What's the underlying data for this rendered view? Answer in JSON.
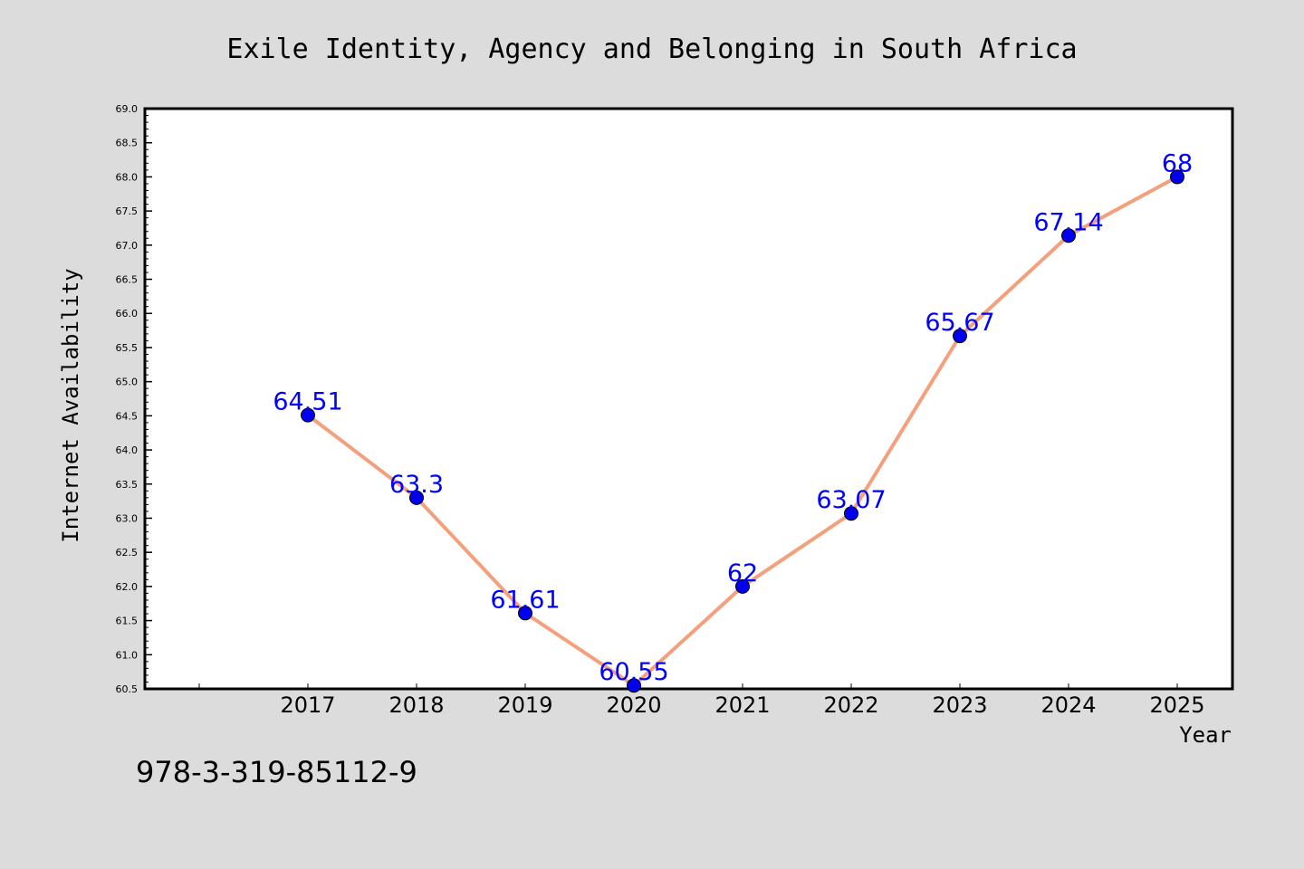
{
  "chart_data": {
    "type": "line",
    "title": "Exile Identity, Agency and Belonging in South Africa",
    "xlabel": "Year",
    "ylabel": "Internet Availability",
    "x": [
      "2017",
      "2018",
      "2019",
      "2020",
      "2021",
      "2022",
      "2023",
      "2024",
      "2025"
    ],
    "series": [
      {
        "values": [
          64.51,
          63.3,
          61.61,
          60.55,
          62,
          63.07,
          65.67,
          67.14,
          68
        ],
        "labels": [
          "64.51",
          "63.3",
          "61.61",
          "60.55",
          "62",
          "63.07",
          "65.67",
          "67.14",
          "68"
        ]
      }
    ],
    "ylim": [
      60.5,
      69.0
    ],
    "yticks": [
      "60.5",
      "61.0",
      "61.5",
      "62.0",
      "62.5",
      "63.0",
      "63.5",
      "64.0",
      "64.5",
      "65.0",
      "65.5",
      "66.0",
      "66.5",
      "67.0",
      "67.5",
      "68.0",
      "68.5",
      "69.0"
    ],
    "grid": false,
    "legend": "none",
    "line_color": "#f4a07c",
    "marker_color": "#0000ee",
    "label_color": "#0000ff",
    "background_color": "#dcdcdc",
    "plot_background": "#ffffff"
  },
  "footer": {
    "isbn": "978-3-319-85112-9"
  }
}
